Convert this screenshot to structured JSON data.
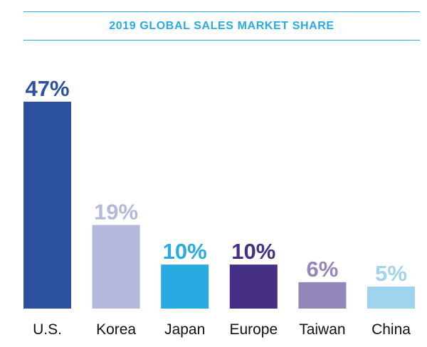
{
  "chart_data": {
    "type": "bar",
    "title": "2019 GLOBAL SALES MARKET SHARE",
    "categories": [
      "U.S.",
      "Korea",
      "Japan",
      "Europe",
      "Taiwan",
      "China"
    ],
    "values": [
      47,
      19,
      10,
      10,
      6,
      5
    ],
    "value_labels": [
      "47%",
      "19%",
      "10%",
      "10%",
      "6%",
      "5%"
    ],
    "colors": [
      "#2c51a0",
      "#b4b9dc",
      "#29abe2",
      "#452f85",
      "#9586b9",
      "#9fd4ef"
    ],
    "ylim": [
      0,
      47
    ],
    "grid": false,
    "legend": "none"
  },
  "style": {
    "title_color": "#29abe2",
    "rule_color": "#29abe2"
  }
}
